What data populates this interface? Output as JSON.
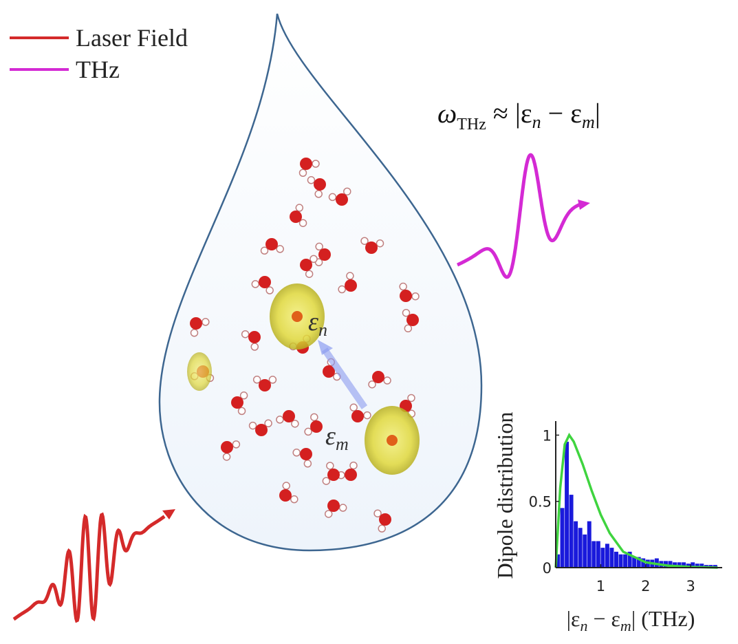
{
  "legend": [
    {
      "label": "Laser Field",
      "color": "#d42a2a"
    },
    {
      "label": "THz",
      "color": "#d42ad4"
    }
  ],
  "formula": [
    "ω",
    "THz",
    " ≈ |ε",
    "n",
    " − ε",
    "m",
    "|"
  ],
  "state_labels": {
    "upper": [
      "ε",
      "n"
    ],
    "lower": [
      "ε",
      "m"
    ]
  },
  "chart_data": {
    "type": "histogram",
    "ylabel": "Dipole distribution",
    "xlabel": [
      "|ε",
      "n",
      " − ε",
      "m",
      "|  (THz)"
    ],
    "bins": [
      0,
      0.1,
      0.2,
      0.3,
      0.4,
      0.5,
      0.6,
      0.7,
      0.8,
      0.9,
      1.0,
      1.1,
      1.2,
      1.3,
      1.4,
      1.5,
      1.6,
      1.7,
      1.8,
      1.9,
      2.0,
      2.1,
      2.2,
      2.3,
      2.4,
      2.5,
      2.6,
      2.7,
      2.8,
      2.9,
      3.0,
      3.1,
      3.2,
      3.3,
      3.4,
      3.5,
      3.6
    ],
    "counts": [
      0.1,
      0.45,
      0.95,
      0.55,
      0.35,
      0.3,
      0.25,
      0.35,
      0.2,
      0.2,
      0.15,
      0.18,
      0.15,
      0.12,
      0.1,
      0.1,
      0.12,
      0.08,
      0.08,
      0.07,
      0.06,
      0.06,
      0.07,
      0.05,
      0.05,
      0.05,
      0.04,
      0.04,
      0.04,
      0.03,
      0.04,
      0.03,
      0.03,
      0.02,
      0.02,
      0.02
    ],
    "color": "#1a1adb",
    "fit": {
      "x": [
        0,
        0.1,
        0.2,
        0.3,
        0.4,
        0.6,
        0.8,
        1.0,
        1.2,
        1.5,
        2.0,
        2.5,
        3.0,
        3.6
      ],
      "values": [
        0,
        0.6,
        0.93,
        1,
        0.95,
        0.78,
        0.58,
        0.4,
        0.26,
        0.12,
        0.04,
        0.015,
        0.005,
        0
      ],
      "color": "#3fd43f"
    },
    "xlim": [
      0,
      3.7
    ],
    "ylim": [
      0,
      1.08
    ],
    "xticks": [
      1,
      2,
      3
    ],
    "yticks": [
      0,
      0.5,
      1
    ]
  }
}
